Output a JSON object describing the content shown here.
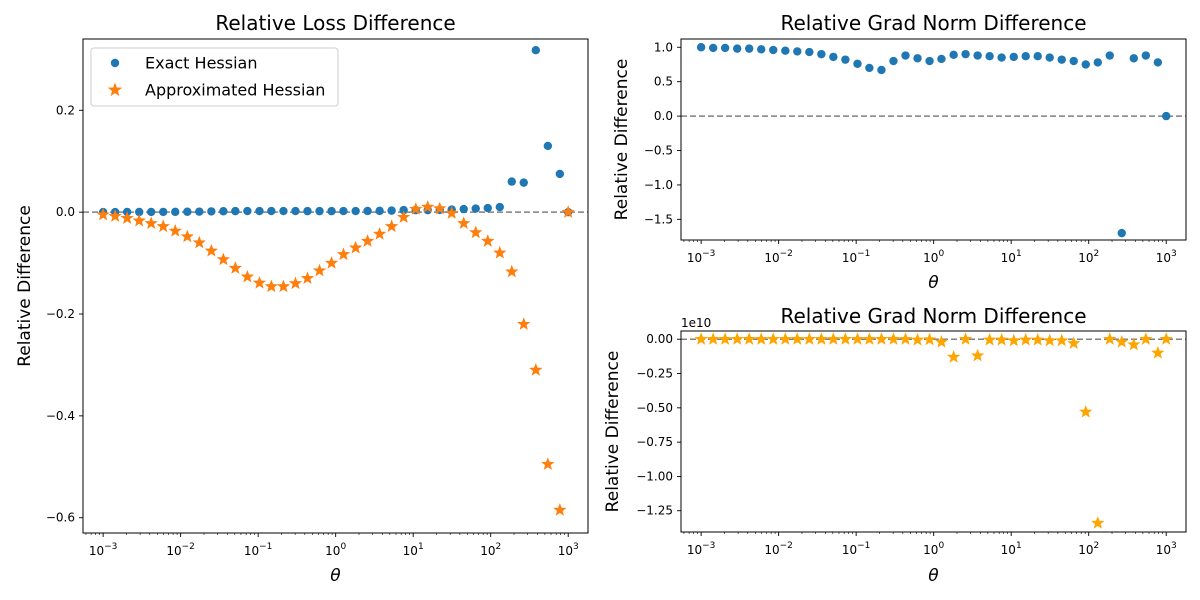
{
  "chart_data": [
    {
      "id": "loss",
      "type": "scatter",
      "title": "Relative Loss Difference",
      "xlabel": "θ",
      "ylabel": "Relative Difference",
      "xscale": "log",
      "xlim": [
        0.00055,
        1800
      ],
      "ylim": [
        -0.63,
        0.34
      ],
      "xticks": [
        0.001,
        0.01,
        0.1,
        1,
        10,
        100,
        1000
      ],
      "yticks": [
        -0.6,
        -0.4,
        -0.2,
        0.0,
        0.2
      ],
      "ytick_labels": [
        "−0.6",
        "−0.4",
        "−0.2",
        "0.0",
        "0.2"
      ],
      "reference_line": 0,
      "legend": {
        "position": "top-left",
        "entries": [
          "Exact Hessian",
          "Approximated Hessian"
        ]
      },
      "series": [
        {
          "name": "Exact Hessian",
          "marker": "circle",
          "color": "#1f77b4",
          "x": [
            0.001,
            0.00143,
            0.00204,
            0.00292,
            0.00417,
            0.00596,
            0.00852,
            0.0122,
            0.0174,
            0.0249,
            0.0356,
            0.0508,
            0.0726,
            0.104,
            0.148,
            0.212,
            0.303,
            0.433,
            0.619,
            0.885,
            1.26,
            1.81,
            2.58,
            3.69,
            5.27,
            7.53,
            10.8,
            15.4,
            22.0,
            31.4,
            44.9,
            64.1,
            91.6,
            131,
            187,
            267,
            382,
            546,
            780,
            1000
          ],
          "y": [
            0.0002,
            0.0002,
            0.0003,
            0.0003,
            0.0004,
            0.0005,
            0.0006,
            0.0008,
            0.001,
            0.0015,
            0.0018,
            0.002,
            0.0021,
            0.0022,
            0.0022,
            0.0022,
            0.0021,
            0.002,
            0.002,
            0.002,
            0.0021,
            0.0022,
            0.0023,
            0.0025,
            0.003,
            0.004,
            0.004,
            0.004,
            0.0045,
            0.005,
            0.006,
            0.007,
            0.008,
            0.01,
            0.06,
            0.058,
            0.318,
            0.13,
            0.075,
            0.0
          ]
        },
        {
          "name": "Approximated Hessian",
          "marker": "star",
          "color": "#ff7f0e",
          "x": [
            0.001,
            0.00143,
            0.00204,
            0.00292,
            0.00417,
            0.00596,
            0.00852,
            0.0122,
            0.0174,
            0.0249,
            0.0356,
            0.0508,
            0.0726,
            0.104,
            0.148,
            0.212,
            0.303,
            0.433,
            0.619,
            0.885,
            1.26,
            1.81,
            2.58,
            3.69,
            5.27,
            7.53,
            10.8,
            15.4,
            22.0,
            31.4,
            44.9,
            64.1,
            91.6,
            131,
            187,
            267,
            382,
            546,
            780,
            1000
          ],
          "y": [
            -0.005,
            -0.008,
            -0.012,
            -0.017,
            -0.022,
            -0.028,
            -0.037,
            -0.048,
            -0.06,
            -0.076,
            -0.093,
            -0.11,
            -0.127,
            -0.139,
            -0.146,
            -0.146,
            -0.14,
            -0.13,
            -0.115,
            -0.1,
            -0.083,
            -0.07,
            -0.057,
            -0.043,
            -0.028,
            -0.01,
            0.006,
            0.01,
            0.007,
            -0.002,
            -0.022,
            -0.04,
            -0.057,
            -0.08,
            -0.117,
            -0.22,
            -0.31,
            -0.495,
            -0.585,
            0.0
          ]
        }
      ]
    },
    {
      "id": "grad_exact",
      "type": "scatter",
      "title": "Relative Grad Norm Difference",
      "xlabel": "θ",
      "ylabel": "Relative Difference",
      "xscale": "log",
      "xlim": [
        0.00055,
        1800
      ],
      "ylim": [
        -1.8,
        1.12
      ],
      "xticks": [
        0.001,
        0.01,
        0.1,
        1,
        10,
        100,
        1000
      ],
      "yticks": [
        -1.5,
        -1.0,
        -0.5,
        0.0,
        0.5,
        1.0
      ],
      "ytick_labels": [
        "−1.5",
        "−1.0",
        "−0.5",
        "0.0",
        "0.5",
        "1.0"
      ],
      "reference_line": 0,
      "series": [
        {
          "name": "Exact Hessian",
          "marker": "circle",
          "color": "#1f77b4",
          "x": [
            0.001,
            0.00143,
            0.00204,
            0.00292,
            0.00417,
            0.00596,
            0.00852,
            0.0122,
            0.0174,
            0.0249,
            0.0356,
            0.0508,
            0.0726,
            0.104,
            0.148,
            0.212,
            0.303,
            0.433,
            0.619,
            0.885,
            1.26,
            1.81,
            2.58,
            3.69,
            5.27,
            7.53,
            10.8,
            15.4,
            22.0,
            31.4,
            44.9,
            64.1,
            91.6,
            131,
            187,
            267,
            382,
            546,
            780,
            1000
          ],
          "y": [
            1.0,
            0.99,
            0.99,
            0.98,
            0.98,
            0.97,
            0.96,
            0.95,
            0.94,
            0.93,
            0.9,
            0.86,
            0.82,
            0.76,
            0.7,
            0.67,
            0.8,
            0.88,
            0.84,
            0.8,
            0.83,
            0.89,
            0.9,
            0.88,
            0.87,
            0.85,
            0.86,
            0.87,
            0.87,
            0.85,
            0.82,
            0.8,
            0.75,
            0.78,
            0.88,
            -1.7,
            0.84,
            0.88,
            0.78,
            0.0
          ]
        }
      ]
    },
    {
      "id": "grad_approx",
      "type": "scatter",
      "title": "Relative Grad Norm Difference",
      "xlabel": "θ",
      "ylabel": "Relative Difference",
      "xscale": "log",
      "xlim": [
        0.00055,
        1800
      ],
      "ylim": [
        -1.405,
        0.06
      ],
      "xticks": [
        0.001,
        0.01,
        0.1,
        1,
        10,
        100,
        1000
      ],
      "yticks": [
        -1.25,
        -1.0,
        -0.75,
        -0.5,
        -0.25,
        0.0
      ],
      "ytick_labels": [
        "−1.25",
        "−1.00",
        "−0.75",
        "−0.50",
        "−0.25",
        "0.00"
      ],
      "offset_label": "1e10",
      "reference_line": 0,
      "series": [
        {
          "name": "Approximated Hessian",
          "marker": "star",
          "color": "#ffa500",
          "x": [
            0.001,
            0.00143,
            0.00204,
            0.00292,
            0.00417,
            0.00596,
            0.00852,
            0.0122,
            0.0174,
            0.0249,
            0.0356,
            0.0508,
            0.0726,
            0.104,
            0.148,
            0.212,
            0.303,
            0.433,
            0.619,
            0.885,
            1.26,
            1.81,
            2.58,
            3.69,
            5.27,
            7.53,
            10.8,
            15.4,
            22.0,
            31.4,
            44.9,
            64.1,
            91.6,
            131,
            187,
            267,
            382,
            546,
            780,
            1000
          ],
          "y": [
            0.0,
            0.0,
            0.0,
            0.0,
            0.0,
            0.0,
            0.0,
            0.0,
            0.0,
            0.0,
            0.0,
            0.0,
            0.0,
            0.0,
            0.0,
            0.0,
            0.0,
            0.0,
            -0.005,
            -0.003,
            -0.02,
            -0.13,
            0.0,
            -0.12,
            -0.005,
            -0.005,
            -0.01,
            -0.005,
            -0.005,
            -0.01,
            -0.01,
            -0.03,
            -0.53,
            -1.34,
            0.0,
            -0.02,
            -0.04,
            0.0,
            -0.1,
            0.0
          ]
        }
      ]
    }
  ]
}
